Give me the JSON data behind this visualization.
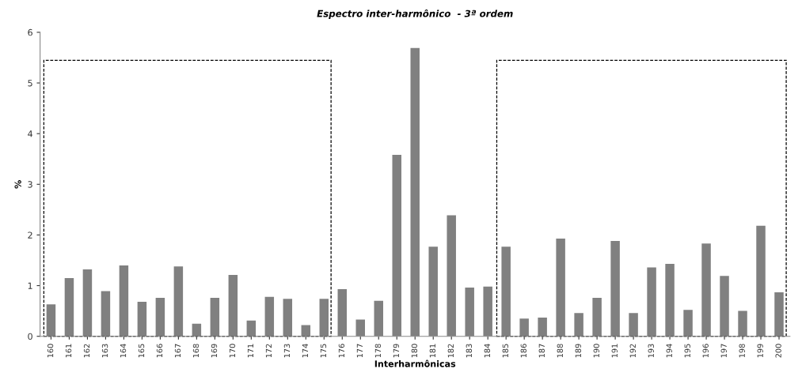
{
  "chart_data": {
    "type": "bar",
    "title": "Espectro inter-harmônico  - 3ª ordem",
    "xlabel": "Interharmônicas",
    "ylabel": "%",
    "categories": [
      "160",
      "161",
      "162",
      "163",
      "164",
      "165",
      "166",
      "167",
      "168",
      "169",
      "170",
      "171",
      "172",
      "173",
      "174",
      "175",
      "176",
      "177",
      "178",
      "179",
      "180",
      "181",
      "182",
      "183",
      "184",
      "185",
      "186",
      "187",
      "188",
      "189",
      "190",
      "191",
      "192",
      "193",
      "194",
      "195",
      "196",
      "197",
      "198",
      "199",
      "200"
    ],
    "values": [
      0.63,
      1.15,
      1.32,
      0.89,
      1.4,
      0.68,
      0.76,
      1.38,
      0.25,
      0.76,
      1.21,
      0.31,
      0.78,
      0.74,
      0.22,
      0.74,
      0.93,
      0.33,
      0.7,
      3.58,
      5.69,
      1.77,
      2.39,
      0.96,
      0.98,
      1.77,
      0.35,
      0.37,
      1.93,
      0.46,
      0.76,
      1.88,
      0.46,
      1.36,
      1.43,
      0.52,
      1.83,
      1.19,
      0.5,
      2.18,
      0.87
    ],
    "color": "#808080",
    "ylim": [
      0,
      6
    ],
    "yticks": [
      0,
      1,
      2,
      3,
      4,
      5,
      6
    ],
    "grid": false
  }
}
